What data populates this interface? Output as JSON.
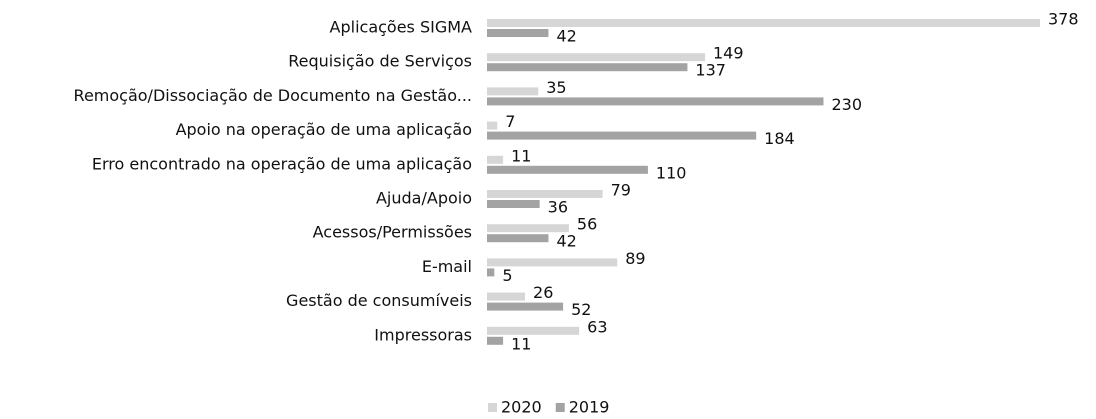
{
  "chart_data": {
    "type": "bar",
    "orientation": "horizontal",
    "categories": [
      "Aplicações SIGMA",
      "Requisição de Serviços",
      "Remoção/Dissociação de Documento na Gestão...",
      "Apoio na operação de uma aplicação",
      "Erro encontrado na operação de uma aplicação",
      "Ajuda/Apoio",
      "Acessos/Permissões",
      "E-mail",
      "Gestão de consumíveis",
      "Impressoras"
    ],
    "series": [
      {
        "name": "2020",
        "color": "#d6d6d6",
        "values": [
          378,
          149,
          35,
          7,
          11,
          79,
          56,
          89,
          26,
          63
        ]
      },
      {
        "name": "2019",
        "color": "#a3a3a3",
        "values": [
          42,
          137,
          230,
          184,
          110,
          36,
          42,
          5,
          52,
          11
        ]
      }
    ],
    "legend": "bottom"
  }
}
